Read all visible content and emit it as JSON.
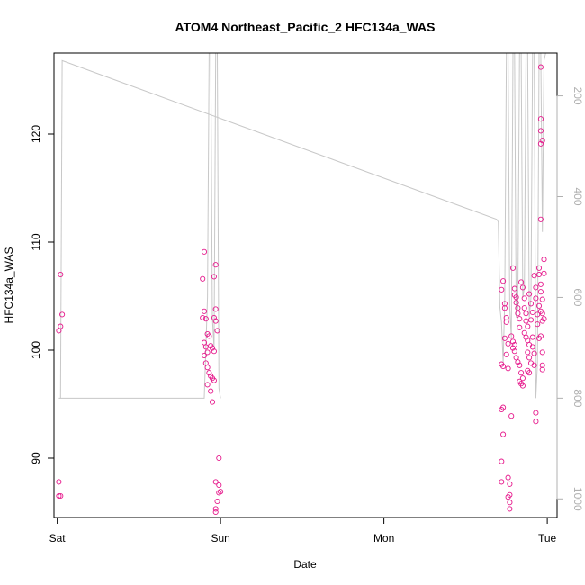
{
  "chart_data": {
    "type": "scatter",
    "title": "ATOM4 Northeast_Pacific_2 HFC134a_WAS",
    "xlabel": "Date",
    "ylabel": "HFC134a_WAS",
    "x_ticks": [
      "Sat",
      "Sun",
      "Mon",
      "Tue"
    ],
    "y_ticks": [
      "90",
      "100",
      "110",
      "120"
    ],
    "y2_ticks": [
      "200",
      "400",
      "600",
      "800",
      "1000"
    ],
    "xlim": [
      -0.02,
      3.06
    ],
    "ylim": [
      84.5,
      127.5
    ],
    "y2lim": [
      1037,
      115
    ],
    "y2_direction": "reversed (pressure axis, hPa)",
    "colors": {
      "points": "#e6198c",
      "line": "#c8c8c8",
      "axis": "#000000",
      "y2_axis": "#b0b0b0"
    },
    "grid": false,
    "series": [
      {
        "marker": "circle",
        "points": [
          [
            0.02,
            107.0
          ],
          [
            0.03,
            103.3
          ],
          [
            0.02,
            102.2
          ],
          [
            0.01,
            101.8
          ],
          [
            0.01,
            87.8
          ],
          [
            0.01,
            86.5
          ],
          [
            0.02,
            86.5
          ],
          [
            0.9,
            109.1
          ],
          [
            0.89,
            106.6
          ],
          [
            0.9,
            103.6
          ],
          [
            0.89,
            103.0
          ],
          [
            0.91,
            102.9
          ],
          [
            0.9,
            100.7
          ],
          [
            0.91,
            100.3
          ],
          [
            0.92,
            99.8
          ],
          [
            0.9,
            99.5
          ],
          [
            0.91,
            98.8
          ],
          [
            0.92,
            98.4
          ],
          [
            0.93,
            97.9
          ],
          [
            0.94,
            97.6
          ],
          [
            0.95,
            97.4
          ],
          [
            0.96,
            97.2
          ],
          [
            0.92,
            96.8
          ],
          [
            0.94,
            96.2
          ],
          [
            0.95,
            95.2
          ],
          [
            0.92,
            101.5
          ],
          [
            0.93,
            101.3
          ],
          [
            0.94,
            100.4
          ],
          [
            0.95,
            100.2
          ],
          [
            0.96,
            99.9
          ],
          [
            0.97,
            107.9
          ],
          [
            0.96,
            106.8
          ],
          [
            0.97,
            103.8
          ],
          [
            0.96,
            103.0
          ],
          [
            0.97,
            102.7
          ],
          [
            0.98,
            101.8
          ],
          [
            0.99,
            90.0
          ],
          [
            0.97,
            87.8
          ],
          [
            0.99,
            87.5
          ],
          [
            0.99,
            86.8
          ],
          [
            1.0,
            86.9
          ],
          [
            0.98,
            86.0
          ],
          [
            0.97,
            85.3
          ],
          [
            0.97,
            85.0
          ],
          [
            2.72,
            105.6
          ],
          [
            2.73,
            106.4
          ],
          [
            2.74,
            104.3
          ],
          [
            2.74,
            103.9
          ],
          [
            2.75,
            103.0
          ],
          [
            2.75,
            102.6
          ],
          [
            2.74,
            101.1
          ],
          [
            2.76,
            100.6
          ],
          [
            2.75,
            99.6
          ],
          [
            2.72,
            98.7
          ],
          [
            2.73,
            98.5
          ],
          [
            2.76,
            98.3
          ],
          [
            2.73,
            94.7
          ],
          [
            2.72,
            94.5
          ],
          [
            2.73,
            92.2
          ],
          [
            2.72,
            89.7
          ],
          [
            2.72,
            87.8
          ],
          [
            2.76,
            88.2
          ],
          [
            2.77,
            87.6
          ],
          [
            2.77,
            86.6
          ],
          [
            2.76,
            86.4
          ],
          [
            2.77,
            85.9
          ],
          [
            2.77,
            85.3
          ],
          [
            2.78,
            93.9
          ],
          [
            2.78,
            101.3
          ],
          [
            2.79,
            100.8
          ],
          [
            2.8,
            100.5
          ],
          [
            2.79,
            100.2
          ],
          [
            2.8,
            99.9
          ],
          [
            2.8,
            105.7
          ],
          [
            2.81,
            104.9
          ],
          [
            2.81,
            104.4
          ],
          [
            2.82,
            103.9
          ],
          [
            2.82,
            103.4
          ],
          [
            2.83,
            102.9
          ],
          [
            2.83,
            102.1
          ],
          [
            2.81,
            99.3
          ],
          [
            2.82,
            98.9
          ],
          [
            2.83,
            98.6
          ],
          [
            2.84,
            97.9
          ],
          [
            2.83,
            97.1
          ],
          [
            2.84,
            96.9
          ],
          [
            2.85,
            97.4
          ],
          [
            2.85,
            96.7
          ],
          [
            2.79,
            107.6
          ],
          [
            2.8,
            105.1
          ],
          [
            2.84,
            106.3
          ],
          [
            2.85,
            105.8
          ],
          [
            2.86,
            104.8
          ],
          [
            2.86,
            103.9
          ],
          [
            2.87,
            103.4
          ],
          [
            2.87,
            102.7
          ],
          [
            2.88,
            102.2
          ],
          [
            2.86,
            101.6
          ],
          [
            2.87,
            101.2
          ],
          [
            2.88,
            100.9
          ],
          [
            2.89,
            100.5
          ],
          [
            2.88,
            99.8
          ],
          [
            2.89,
            99.3
          ],
          [
            2.9,
            98.8
          ],
          [
            2.89,
            97.9
          ],
          [
            2.88,
            98.1
          ],
          [
            2.89,
            105.2
          ],
          [
            2.9,
            104.3
          ],
          [
            2.91,
            103.5
          ],
          [
            2.9,
            102.8
          ],
          [
            2.91,
            101.2
          ],
          [
            2.91,
            100.3
          ],
          [
            2.92,
            99.7
          ],
          [
            2.92,
            106.9
          ],
          [
            2.93,
            105.8
          ],
          [
            2.93,
            104.8
          ],
          [
            2.94,
            103.3
          ],
          [
            2.94,
            102.4
          ],
          [
            2.95,
            101.1
          ],
          [
            2.92,
            98.6
          ],
          [
            2.93,
            94.2
          ],
          [
            2.93,
            93.4
          ],
          [
            2.95,
            107.6
          ],
          [
            2.95,
            107.0
          ],
          [
            2.96,
            106.1
          ],
          [
            2.96,
            105.4
          ],
          [
            2.95,
            104.1
          ],
          [
            2.96,
            103.6
          ],
          [
            2.97,
            102.7
          ],
          [
            2.96,
            101.3
          ],
          [
            2.97,
            99.8
          ],
          [
            2.97,
            98.6
          ],
          [
            2.97,
            98.2
          ],
          [
            2.96,
            126.2
          ],
          [
            2.96,
            121.4
          ],
          [
            2.96,
            120.3
          ],
          [
            2.96,
            119.1
          ],
          [
            2.97,
            119.4
          ],
          [
            2.96,
            112.1
          ],
          [
            2.98,
            108.4
          ],
          [
            2.98,
            107.1
          ],
          [
            2.97,
            104.7
          ],
          [
            2.98,
            102.9
          ],
          [
            2.97,
            103.4
          ]
        ]
      },
      {
        "marker": "line",
        "axis": "y2",
        "points": [
          [
            0.01,
            800
          ],
          [
            0.02,
            800
          ],
          [
            0.03,
            130
          ],
          [
            2.69,
            445
          ],
          [
            2.7,
            450
          ],
          [
            2.71,
            620
          ],
          [
            2.72,
            650
          ],
          [
            2.73,
            730
          ],
          [
            2.74,
            600
          ],
          [
            2.75,
            115
          ],
          [
            2.76,
            115
          ],
          [
            2.77,
            620
          ],
          [
            2.78,
            680
          ],
          [
            2.79,
            115
          ],
          [
            2.8,
            115
          ],
          [
            2.81,
            640
          ],
          [
            2.82,
            620
          ],
          [
            2.83,
            115
          ],
          [
            2.84,
            115
          ],
          [
            2.85,
            600
          ],
          [
            2.86,
            580
          ],
          [
            2.87,
            115
          ],
          [
            2.88,
            115
          ],
          [
            2.89,
            640
          ],
          [
            2.9,
            600
          ],
          [
            2.91,
            115
          ],
          [
            2.92,
            115
          ],
          [
            2.93,
            800
          ],
          [
            2.94,
            730
          ],
          [
            2.95,
            115
          ],
          [
            2.96,
            115
          ],
          [
            2.97,
            470
          ],
          [
            2.98,
            130
          ],
          [
            2.99,
            115
          ]
        ]
      },
      {
        "marker": "line",
        "axis": "y2",
        "points": [
          [
            0.02,
            800
          ],
          [
            0.5,
            800
          ],
          [
            0.9,
            800
          ],
          [
            0.92,
            600
          ],
          [
            0.93,
            115
          ],
          [
            0.94,
            115
          ],
          [
            0.95,
            640
          ],
          [
            0.96,
            700
          ],
          [
            0.97,
            115
          ],
          [
            0.98,
            115
          ],
          [
            0.99,
            780
          ],
          [
            1.0,
            800
          ]
        ]
      }
    ]
  }
}
